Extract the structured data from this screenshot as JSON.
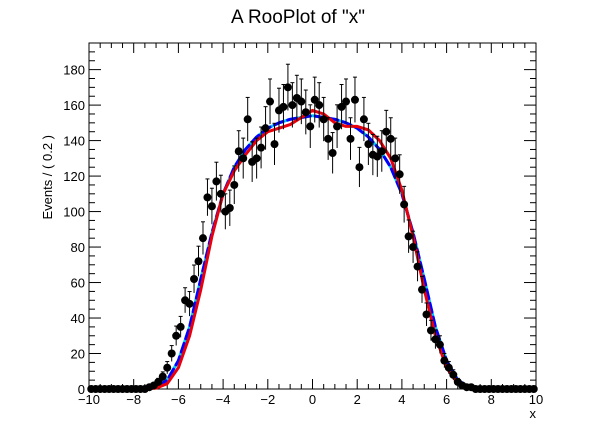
{
  "chart_data": {
    "type": "scatter",
    "title": "A RooPlot of \"x\"",
    "xlabel": "x",
    "ylabel": "Events / ( 0.2 )",
    "xlim": [
      -10,
      10
    ],
    "ylim": [
      0,
      195
    ],
    "xticks": [
      -10,
      -8,
      -6,
      -4,
      -2,
      0,
      2,
      4,
      6,
      8,
      10
    ],
    "yticks": [
      0,
      20,
      40,
      60,
      80,
      100,
      120,
      140,
      160,
      180
    ],
    "grid": false,
    "colors": {
      "data": "#000000",
      "pdf_red": "#e8000b",
      "pdf_blue": "#0000ff",
      "pdf_cyan": "#00ccff"
    },
    "series": [
      {
        "kind": "data-points-with-errors",
        "x": [
          -9.9,
          -9.7,
          -9.5,
          -9.3,
          -9.1,
          -8.9,
          -8.7,
          -8.5,
          -8.3,
          -8.1,
          -7.9,
          -7.7,
          -7.5,
          -7.3,
          -7.1,
          -6.9,
          -6.7,
          -6.5,
          -6.3,
          -6.1,
          -5.9,
          -5.7,
          -5.5,
          -5.3,
          -5.1,
          -4.9,
          -4.7,
          -4.5,
          -4.3,
          -4.1,
          -3.9,
          -3.7,
          -3.5,
          -3.3,
          -3.1,
          -2.9,
          -2.7,
          -2.5,
          -2.3,
          -2.1,
          -1.9,
          -1.7,
          -1.5,
          -1.3,
          -1.1,
          -0.9,
          -0.7,
          -0.5,
          -0.3,
          -0.1,
          0.1,
          0.3,
          0.5,
          0.7,
          0.9,
          1.1,
          1.3,
          1.5,
          1.7,
          1.9,
          2.1,
          2.3,
          2.5,
          2.7,
          2.9,
          3.1,
          3.3,
          3.5,
          3.7,
          3.9,
          4.1,
          4.3,
          4.5,
          4.7,
          4.9,
          5.1,
          5.3,
          5.5,
          5.7,
          5.9,
          6.1,
          6.3,
          6.5,
          6.7,
          6.9,
          7.1,
          7.3,
          7.5,
          7.7,
          7.9,
          8.1,
          8.3,
          8.5,
          8.7,
          8.9,
          9.1,
          9.3,
          9.5,
          9.7,
          9.9
        ],
        "y": [
          0,
          0,
          0,
          0,
          0,
          0,
          0,
          0,
          0,
          0,
          0,
          0,
          0,
          1,
          2,
          4,
          7,
          12,
          20,
          30,
          35,
          50,
          48,
          62,
          72,
          85,
          108,
          103,
          117,
          110,
          100,
          102,
          115,
          134,
          130,
          152,
          128,
          130,
          136,
          147,
          162,
          138,
          157,
          159,
          170,
          160,
          164,
          162,
          156,
          148,
          163,
          160,
          152,
          141,
          133,
          148,
          159,
          162,
          141,
          163,
          125,
          152,
          138,
          132,
          131,
          134,
          145,
          141,
          130,
          121,
          104,
          86,
          80,
          69,
          56,
          42,
          33,
          28,
          25,
          16,
          12,
          8,
          4,
          2,
          1,
          1,
          0,
          0,
          0,
          0,
          0,
          0,
          0,
          0,
          0,
          0,
          0,
          0,
          0,
          0
        ]
      },
      {
        "name": "",
        "kind": "red-solid-curve",
        "x": [
          -10,
          -7.5,
          -7,
          -6.5,
          -6,
          -5.5,
          -5,
          -4.5,
          -4,
          -3.5,
          -3,
          -2.5,
          -2,
          -1.5,
          -1,
          -0.5,
          0,
          0.5,
          1,
          1.5,
          2,
          2.5,
          3,
          3.5,
          4,
          4.5,
          5,
          5.5,
          6,
          6.5,
          7,
          7.5,
          10
        ],
        "y": [
          0,
          0,
          0.5,
          3,
          12,
          30,
          56,
          86,
          110,
          123,
          132,
          140,
          145,
          147,
          149,
          153,
          157,
          155,
          150,
          148,
          148,
          146,
          140,
          130,
          112,
          86,
          56,
          30,
          12,
          3,
          0.5,
          0,
          0
        ]
      },
      {
        "name": "",
        "kind": "blue-dashed-curve",
        "x": [
          -10,
          -7.5,
          -7,
          -6.5,
          -6,
          -5.5,
          -5,
          -4.5,
          -4,
          -3.5,
          -3,
          -2.5,
          -2,
          -1.5,
          -1,
          -0.5,
          0,
          0.5,
          1,
          1.5,
          2,
          2.5,
          3,
          3.5,
          4,
          4.5,
          5,
          5.5,
          6,
          6.5,
          7,
          7.5,
          10
        ],
        "y": [
          0,
          0,
          1,
          5,
          16,
          35,
          62,
          88,
          110,
          125,
          135,
          142,
          147,
          150,
          152,
          153,
          154,
          153,
          152,
          150,
          147,
          142,
          135,
          125,
          110,
          88,
          62,
          35,
          16,
          5,
          1,
          0,
          0
        ]
      }
    ]
  }
}
